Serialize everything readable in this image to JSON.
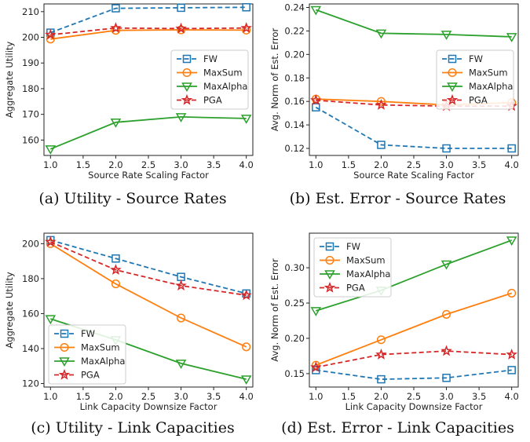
{
  "captions": {
    "a": "(a)  Utility - Source Rates",
    "b": "(b)  Est. Error - Source Rates",
    "c": "(c)  Utility - Link Capacities",
    "d": "(d)  Est. Error - Link Capacities"
  },
  "chart_data": [
    {
      "type": "line",
      "xlabel": "Source Rate Scaling Factor",
      "ylabel": "Aggregate Utility",
      "x": [
        1.0,
        2.0,
        3.0,
        4.0
      ],
      "xticks": [
        "1.0",
        "1.5",
        "2.0",
        "2.5",
        "3.0",
        "3.5",
        "4.0"
      ],
      "xlim": [
        0.9,
        4.1
      ],
      "ylim": [
        154,
        213
      ],
      "yticks": [
        "160",
        "170",
        "180",
        "190",
        "200",
        "210"
      ],
      "legend": "center-right",
      "series": [
        {
          "name": "FW",
          "values": [
            201.8,
            211.3,
            211.5,
            211.7
          ],
          "color": "#1f77b4",
          "dash": "dashed",
          "marker": "square"
        },
        {
          "name": "MaxSum",
          "values": [
            199.3,
            202.7,
            202.9,
            202.8
          ],
          "color": "#ff7f0e",
          "dash": "solid",
          "marker": "circle"
        },
        {
          "name": "MaxAlpha",
          "values": [
            156.5,
            166.9,
            169.0,
            168.4
          ],
          "color": "#2ca02c",
          "dash": "solid",
          "marker": "triangle-down"
        },
        {
          "name": "PGA",
          "values": [
            201.0,
            203.6,
            203.4,
            203.6
          ],
          "color": "#d62728",
          "dash": "dashed",
          "marker": "star"
        }
      ]
    },
    {
      "type": "line",
      "xlabel": "Source Rate Scaling Factor",
      "ylabel": "Avg. Norm of Est. Error",
      "x": [
        1.0,
        2.0,
        3.0,
        4.0
      ],
      "xticks": [
        "1.0",
        "1.5",
        "2.0",
        "2.5",
        "3.0",
        "3.5",
        "4.0"
      ],
      "xlim": [
        0.9,
        4.1
      ],
      "ylim": [
        0.114,
        0.243
      ],
      "yticks": [
        "0.12",
        "0.14",
        "0.16",
        "0.18",
        "0.20",
        "0.22",
        "0.24"
      ],
      "legend": "center-right",
      "series": [
        {
          "name": "FW",
          "values": [
            0.155,
            0.123,
            0.12,
            0.12
          ],
          "color": "#1f77b4",
          "dash": "dashed",
          "marker": "square"
        },
        {
          "name": "MaxSum",
          "values": [
            0.162,
            0.16,
            0.157,
            0.159
          ],
          "color": "#ff7f0e",
          "dash": "solid",
          "marker": "circle"
        },
        {
          "name": "MaxAlpha",
          "values": [
            0.238,
            0.218,
            0.217,
            0.215
          ],
          "color": "#2ca02c",
          "dash": "solid",
          "marker": "triangle-down"
        },
        {
          "name": "PGA",
          "values": [
            0.161,
            0.157,
            0.156,
            0.156
          ],
          "color": "#d62728",
          "dash": "dashed",
          "marker": "star"
        }
      ]
    },
    {
      "type": "line",
      "xlabel": "Link Capacity Downsize Factor",
      "ylabel": "Aggregate Utility",
      "x": [
        1.0,
        2.0,
        3.0,
        4.0
      ],
      "xticks": [
        "1.0",
        "1.5",
        "2.0",
        "2.5",
        "3.0",
        "3.5",
        "4.0"
      ],
      "xlim": [
        0.9,
        4.1
      ],
      "ylim": [
        118,
        206
      ],
      "yticks": [
        "120",
        "140",
        "160",
        "180",
        "200"
      ],
      "legend": "lower-left",
      "series": [
        {
          "name": "FW",
          "values": [
            202.0,
            191.5,
            181.0,
            171.5
          ],
          "color": "#1f77b4",
          "dash": "dashed",
          "marker": "square"
        },
        {
          "name": "MaxSum",
          "values": [
            200.0,
            177.0,
            157.5,
            141.0
          ],
          "color": "#ff7f0e",
          "dash": "solid",
          "marker": "circle"
        },
        {
          "name": "MaxAlpha",
          "values": [
            157.0,
            145.0,
            131.5,
            122.5
          ],
          "color": "#2ca02c",
          "dash": "solid",
          "marker": "triangle-down"
        },
        {
          "name": "PGA",
          "values": [
            201.0,
            185.0,
            176.0,
            170.5
          ],
          "color": "#d62728",
          "dash": "dashed",
          "marker": "star"
        }
      ]
    },
    {
      "type": "line",
      "xlabel": "Link Capacity Downsize Factor",
      "ylabel": "Avg. Norm of Est. Error",
      "x": [
        1.0,
        2.0,
        3.0,
        4.0
      ],
      "xticks": [
        "1.0",
        "1.5",
        "2.0",
        "2.5",
        "3.0",
        "3.5",
        "4.0"
      ],
      "xlim": [
        0.9,
        4.1
      ],
      "ylim": [
        0.131,
        0.349
      ],
      "yticks": [
        "0.15",
        "0.20",
        "0.25",
        "0.30"
      ],
      "legend": "upper-left",
      "series": [
        {
          "name": "FW",
          "values": [
            0.155,
            0.142,
            0.144,
            0.155
          ],
          "color": "#1f77b4",
          "dash": "dashed",
          "marker": "square"
        },
        {
          "name": "MaxSum",
          "values": [
            0.162,
            0.198,
            0.234,
            0.264
          ],
          "color": "#ff7f0e",
          "dash": "solid",
          "marker": "circle"
        },
        {
          "name": "MaxAlpha",
          "values": [
            0.239,
            0.268,
            0.305,
            0.339
          ],
          "color": "#2ca02c",
          "dash": "solid",
          "marker": "triangle-down"
        },
        {
          "name": "PGA",
          "values": [
            0.159,
            0.177,
            0.182,
            0.177
          ],
          "color": "#d62728",
          "dash": "dashed",
          "marker": "star"
        }
      ]
    }
  ]
}
